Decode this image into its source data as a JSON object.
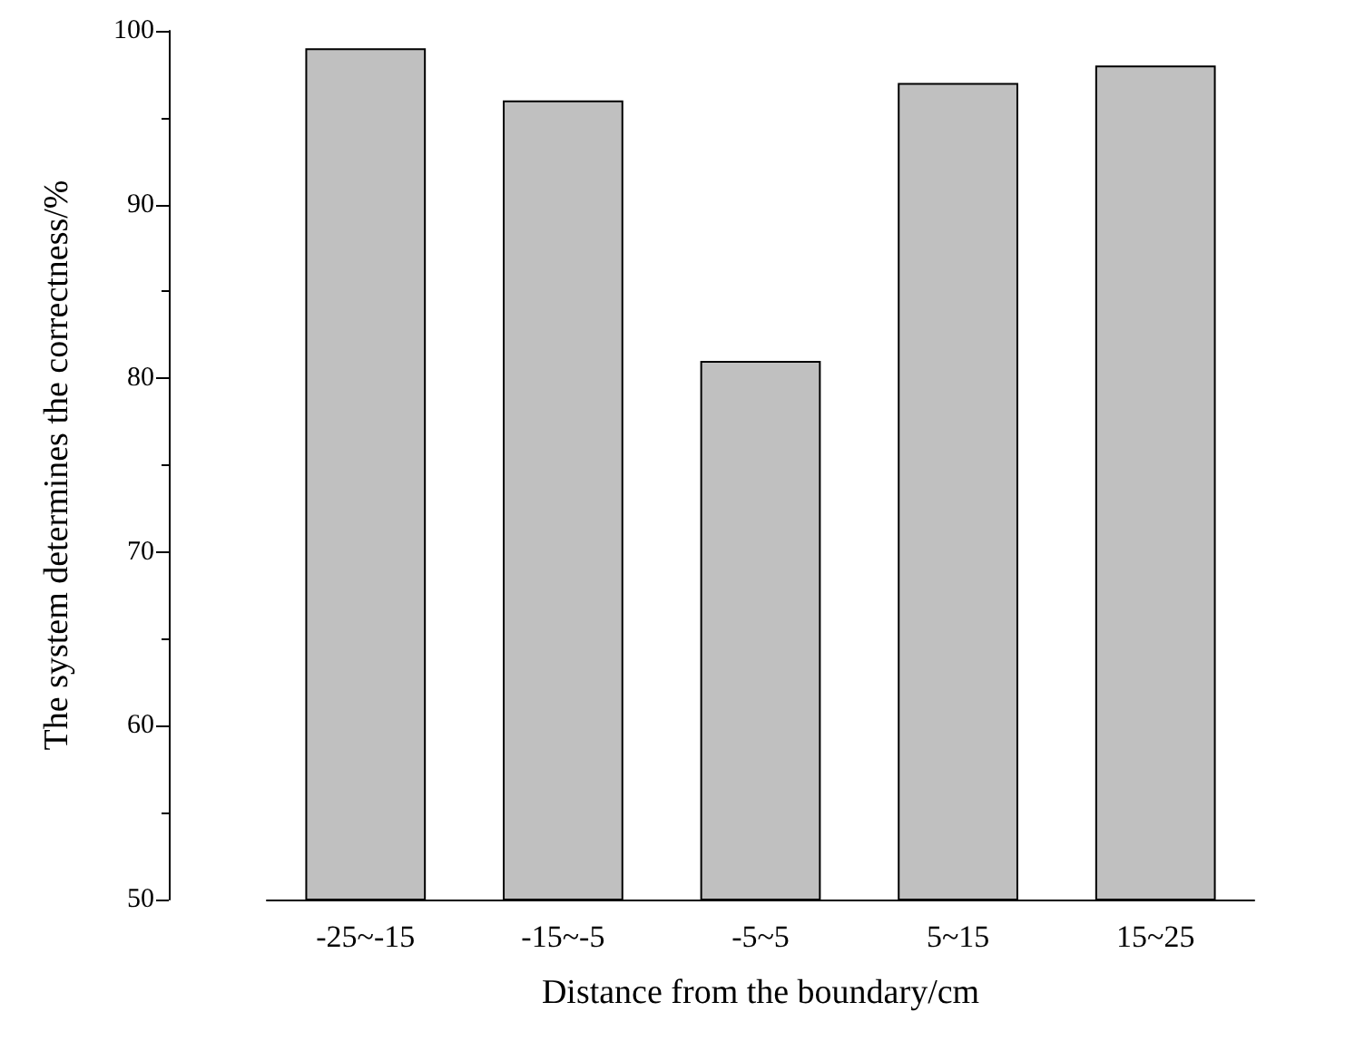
{
  "chart_data": {
    "type": "bar",
    "xlabel": "Distance from the boundary/cm",
    "ylabel": "The system determines the correctness/%",
    "categories": [
      "-25~-15",
      "-15~-5",
      "-5~5",
      "5~15",
      "15~25"
    ],
    "values": [
      99,
      96,
      81,
      97,
      98
    ],
    "color": "#c0c0c0",
    "ylim": [
      50,
      100
    ],
    "yticks": [
      50,
      60,
      70,
      80,
      90,
      100
    ],
    "grid": false
  }
}
